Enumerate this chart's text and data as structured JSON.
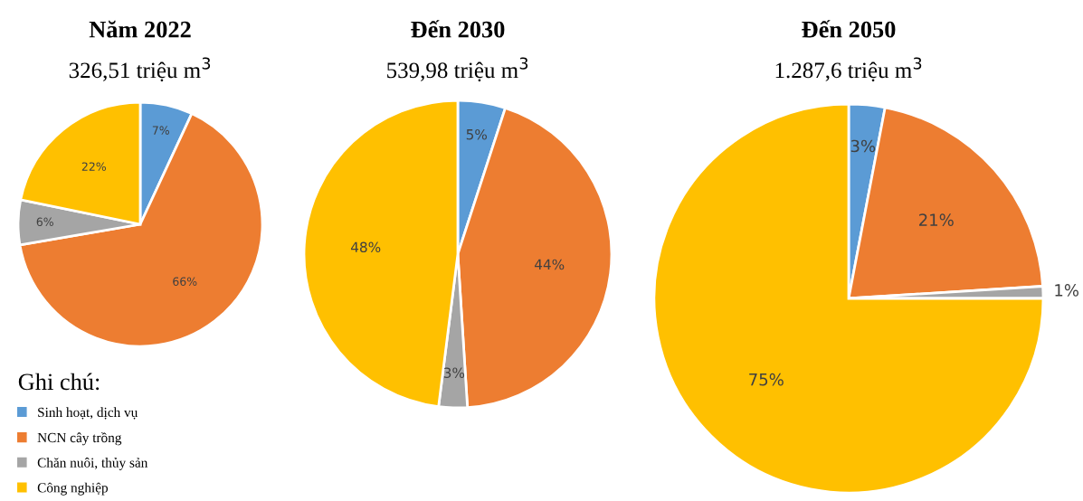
{
  "chart_data": [
    {
      "type": "pie",
      "title": "Năm 2022",
      "subtitle": "326,51 triệu m$^{3}$",
      "categories": [
        "Sinh hoạt, dịch vụ",
        "NCN cây trồng",
        "Chăn nuôi, thủy sản",
        "Công nghiệp"
      ],
      "values": [
        7,
        66,
        6,
        22
      ],
      "value_labels": [
        "7%",
        "66%",
        "6%",
        "22%"
      ],
      "colors": [
        "#5b9bd5",
        "#ed7d31",
        "#a5a5a5",
        "#ffc000"
      ],
      "legend": "bottom left",
      "legend_title": "Ghi chú:"
    },
    {
      "type": "pie",
      "title": "Đến 2030",
      "subtitle": "539,98 triệu m$^{3}$",
      "categories": [
        null,
        null,
        null,
        null
      ],
      "values": [
        5,
        44,
        3,
        48
      ],
      "value_labels": [
        "5%",
        "44%",
        "3%",
        "48%"
      ],
      "colors": [
        "#5b9bd5",
        "#ed7d31",
        "#a5a5a5",
        "#ffc000"
      ]
    },
    {
      "type": "pie",
      "title": "Đến 2050",
      "subtitle": "1.287,6 triệu m$^{3}$",
      "categories": [
        null,
        null,
        null,
        null
      ],
      "values": [
        3,
        21,
        1,
        75
      ],
      "value_labels": [
        "3%",
        "21%",
        "1%",
        "75%"
      ],
      "colors": [
        "#5b9bd5",
        "#ed7d31",
        "#a5a5a5",
        "#ffc000"
      ]
    }
  ]
}
